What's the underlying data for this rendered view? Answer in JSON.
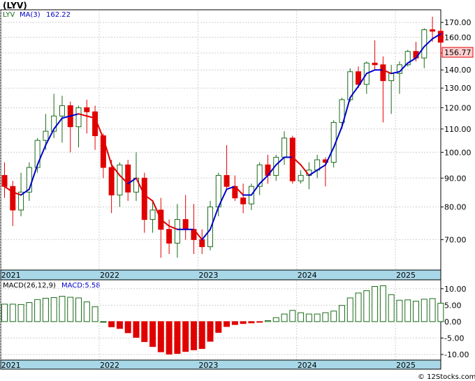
{
  "header": {
    "title": "(LYV)",
    "ticker": "LYV",
    "ma_label": "MA(3)",
    "ma_value": "162.22"
  },
  "macd_header": {
    "label": "MACD(26,12,9)",
    "value_label": "MACD:5.58"
  },
  "last_price_label": "156.77",
  "credit": "© 12Stocks.com",
  "colors": {
    "up": "#ffffff",
    "up_edge": "#1a6b1a",
    "down": "#e00000",
    "ma_up": "#0000cc",
    "ma_down": "#e00000",
    "axis_band": "#a8d8e8",
    "macd_pos_edge": "#1a6b1a",
    "macd_neg": "#e00000"
  },
  "chart_data": [
    {
      "type": "candlestick",
      "title": "(LYV)",
      "y_scale": "log",
      "ylim": [
        62,
        178
      ],
      "y_ticks": [
        "70.00",
        "80.00",
        "90.00",
        "100.00",
        "110.00",
        "120.00",
        "130.00",
        "140.00",
        "150.00",
        "160.00",
        "170.00"
      ],
      "y_tick_values": [
        70,
        80,
        90,
        100,
        110,
        120,
        130,
        140,
        150,
        160,
        170
      ],
      "x_labels": [
        "2021",
        "2022",
        "2023",
        "2024",
        "2025"
      ],
      "x_label_bar_index": [
        0,
        12,
        24,
        36,
        48
      ],
      "grid": true,
      "ohlc": [
        [
          91,
          96,
          83,
          87
        ],
        [
          87,
          89,
          74,
          79
        ],
        [
          79,
          92,
          77,
          85
        ],
        [
          85,
          96,
          82,
          94
        ],
        [
          94,
          106,
          92,
          105
        ],
        [
          105,
          117,
          101,
          109
        ],
        [
          109,
          127,
          106,
          116
        ],
        [
          116,
          126,
          104,
          121
        ],
        [
          121,
          123,
          100,
          111
        ],
        [
          111,
          121,
          102,
          120
        ],
        [
          120,
          124,
          108,
          118
        ],
        [
          118,
          121,
          101,
          107
        ],
        [
          107,
          108,
          90,
          94
        ],
        [
          94,
          97,
          78,
          84
        ],
        [
          84,
          96,
          80,
          95
        ],
        [
          95,
          97,
          82,
          85
        ],
        [
          85,
          100,
          82,
          90
        ],
        [
          90,
          92,
          72,
          76
        ],
        [
          76,
          82,
          72,
          79
        ],
        [
          79,
          83,
          65,
          73
        ],
        [
          73,
          76,
          66,
          69
        ],
        [
          69,
          81,
          65,
          76
        ],
        [
          76,
          84,
          70,
          73
        ],
        [
          73,
          81,
          66,
          70
        ],
        [
          70,
          73,
          66,
          68
        ],
        [
          68,
          82,
          67,
          80
        ],
        [
          80,
          92,
          77,
          91
        ],
        [
          91,
          103,
          86,
          87
        ],
        [
          87,
          91,
          82,
          83
        ],
        [
          83,
          88,
          78,
          81
        ],
        [
          81,
          88,
          79,
          87
        ],
        [
          87,
          96,
          84,
          95
        ],
        [
          95,
          99,
          88,
          91
        ],
        [
          91,
          99,
          89,
          98
        ],
        [
          98,
          109,
          95,
          106
        ],
        [
          106,
          107,
          88,
          89
        ],
        [
          89,
          93,
          88,
          91
        ],
        [
          91,
          96,
          86,
          93
        ],
        [
          93,
          99,
          90,
          97
        ],
        [
          97,
          98,
          87,
          96
        ],
        [
          96,
          114,
          94,
          113
        ],
        [
          113,
          125,
          110,
          124
        ],
        [
          124,
          141,
          123,
          139
        ],
        [
          139,
          142,
          130,
          132
        ],
        [
          132,
          145,
          127,
          144
        ],
        [
          144,
          158,
          140,
          143
        ],
        [
          143,
          148,
          113,
          134
        ],
        [
          134,
          143,
          117,
          138
        ],
        [
          138,
          145,
          127,
          143
        ],
        [
          143,
          152,
          142,
          151
        ],
        [
          151,
          157,
          145,
          147
        ],
        [
          147,
          166,
          141,
          165
        ],
        [
          165,
          174,
          157,
          164
        ],
        [
          164,
          166,
          148,
          156.77
        ]
      ],
      "ma3": [
        87,
        85,
        84,
        86,
        95,
        103,
        110,
        115,
        116,
        117,
        116,
        115,
        106,
        95,
        91,
        88,
        90,
        84,
        82,
        76,
        74,
        73,
        73,
        73,
        70,
        73,
        80,
        86,
        87,
        84,
        84,
        88,
        91,
        95,
        98,
        98,
        95,
        91,
        93,
        95,
        102,
        111,
        125,
        131,
        138,
        140,
        140,
        138,
        139,
        144,
        147,
        154,
        159,
        162.22
      ]
    },
    {
      "type": "bar",
      "title": "MACD(26,12,9)",
      "ylim": [
        -11.5,
        12.5
      ],
      "y_ticks": [
        "-10.00",
        "-5.00",
        "0.00",
        "5.00",
        "10.00"
      ],
      "y_tick_values": [
        -10,
        -5,
        0,
        5,
        10
      ],
      "x_labels": [
        "2021",
        "2022",
        "2023",
        "2024",
        "2025"
      ],
      "x_label_bar_index": [
        0,
        12,
        24,
        36,
        48
      ],
      "grid": true,
      "values": [
        5.3,
        5.3,
        5.2,
        5.8,
        6.7,
        7.1,
        7.3,
        7.7,
        7.4,
        7.2,
        6.0,
        4.5,
        0.0,
        -1.6,
        -2.1,
        -3.4,
        -4.8,
        -6.1,
        -7.6,
        -9.2,
        -9.9,
        -9.7,
        -9.1,
        -8.6,
        -8.2,
        -6.0,
        -3.3,
        -1.5,
        -0.9,
        -0.6,
        -0.4,
        -0.1,
        0.3,
        1.2,
        2.3,
        3.4,
        2.7,
        2.3,
        2.3,
        2.7,
        3.2,
        4.9,
        7.2,
        8.7,
        9.4,
        10.7,
        10.9,
        8.2,
        6.5,
        6.6,
        6.2,
        6.8,
        7.0,
        5.58
      ],
      "value_label": "MACD:5.58"
    }
  ]
}
